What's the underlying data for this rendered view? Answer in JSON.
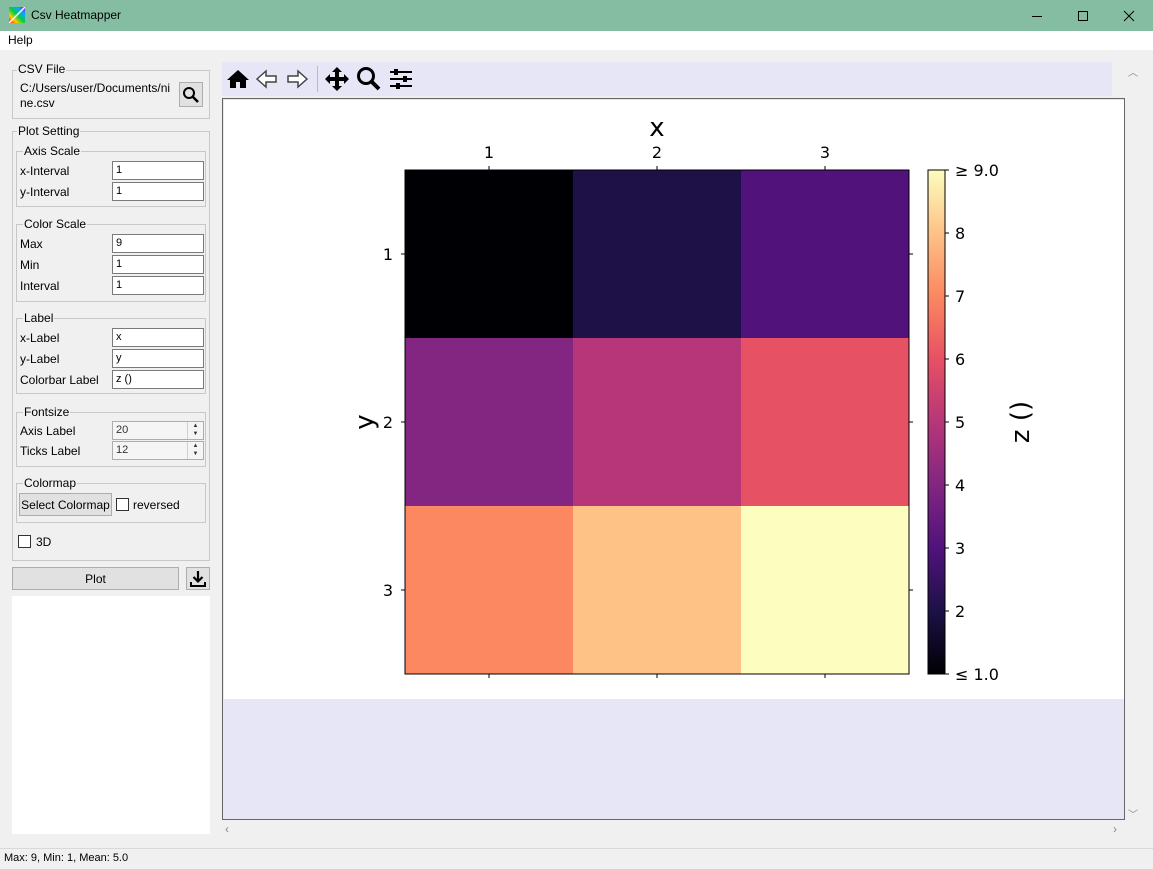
{
  "window": {
    "title": "Csv Heatmapper",
    "menu": [
      "Help"
    ]
  },
  "csv_file": {
    "group_title": "CSV File",
    "path": "C:/Users/user/Documents/nine.csv"
  },
  "plot_setting": {
    "group_title": "Plot Setting",
    "axis_scale": {
      "title": "Axis Scale",
      "x_interval_label": "x-Interval",
      "x_interval": "1",
      "y_interval_label": "y-Interval",
      "y_interval": "1"
    },
    "color_scale": {
      "title": "Color Scale",
      "max_label": "Max",
      "max": "9",
      "min_label": "Min",
      "min": "1",
      "interval_label": "Interval",
      "interval": "1"
    },
    "label": {
      "title": "Label",
      "x_label_label": "x-Label",
      "x_label": "x",
      "y_label_label": "y-Label",
      "y_label": "y",
      "colorbar_label_label": "Colorbar Label",
      "colorbar_label": "z ()"
    },
    "fontsize": {
      "title": "Fontsize",
      "axis_label_label": "Axis Label",
      "axis_label": "20",
      "ticks_label_label": "Ticks Label",
      "ticks_label": "12"
    },
    "colormap": {
      "title": "Colormap",
      "select_button": "Select Colormap",
      "reversed_label": "reversed",
      "reversed": false
    },
    "three_d_label": "3D",
    "three_d": false
  },
  "plot_button": "Plot",
  "status": "Max: 9, Min: 1, Mean: 5.0",
  "colors": {
    "titlebar": "#84bda2",
    "plot_background": "#e6e6f7"
  },
  "icons": {
    "app": "app-rainbow-icon",
    "browse": "search-icon",
    "save": "download-icon",
    "toolbar": [
      "home-icon",
      "back-icon",
      "forward-icon",
      "pan-icon",
      "zoom-icon",
      "configure-subplots-icon"
    ]
  },
  "chart_data": {
    "type": "heatmap",
    "colormap": "magma",
    "x_categories": [
      "1",
      "2",
      "3"
    ],
    "y_categories": [
      "1",
      "2",
      "3"
    ],
    "values": [
      [
        1,
        2,
        3
      ],
      [
        4,
        5,
        6
      ],
      [
        7,
        8,
        9
      ]
    ],
    "xlabel": "x",
    "ylabel": "y",
    "colorbar_label": "z ()",
    "colorbar_ticks": [
      "≤ 1.0",
      "2",
      "3",
      "4",
      "5",
      "6",
      "7",
      "8",
      "≥ 9.0"
    ],
    "zlim": [
      1,
      9
    ],
    "x_axis_position": "top",
    "colorbar_position": "right",
    "grid": false
  }
}
